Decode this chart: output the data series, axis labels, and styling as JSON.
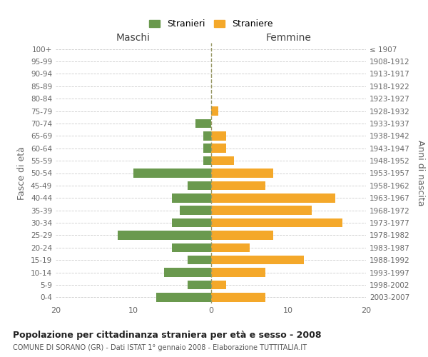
{
  "age_groups": [
    "0-4",
    "5-9",
    "10-14",
    "15-19",
    "20-24",
    "25-29",
    "30-34",
    "35-39",
    "40-44",
    "45-49",
    "50-54",
    "55-59",
    "60-64",
    "65-69",
    "70-74",
    "75-79",
    "80-84",
    "85-89",
    "90-94",
    "95-99",
    "100+"
  ],
  "birth_years": [
    "2003-2007",
    "1998-2002",
    "1993-1997",
    "1988-1992",
    "1983-1987",
    "1978-1982",
    "1973-1977",
    "1968-1972",
    "1963-1967",
    "1958-1962",
    "1953-1957",
    "1948-1952",
    "1943-1947",
    "1938-1942",
    "1933-1937",
    "1928-1932",
    "1923-1927",
    "1918-1922",
    "1913-1917",
    "1908-1912",
    "≤ 1907"
  ],
  "males": [
    7,
    3,
    6,
    3,
    5,
    12,
    5,
    4,
    5,
    3,
    10,
    1,
    1,
    1,
    2,
    0,
    0,
    0,
    0,
    0,
    0
  ],
  "females": [
    7,
    2,
    7,
    12,
    5,
    8,
    17,
    13,
    16,
    7,
    8,
    3,
    2,
    2,
    0,
    1,
    0,
    0,
    0,
    0,
    0
  ],
  "male_color": "#6a994e",
  "female_color": "#f4a82a",
  "background_color": "#ffffff",
  "grid_color": "#cccccc",
  "title": "Popolazione per cittadinanza straniera per età e sesso - 2008",
  "subtitle": "COMUNE DI SORANO (GR) - Dati ISTAT 1° gennaio 2008 - Elaborazione TUTTITALIA.IT",
  "xlabel_left": "Maschi",
  "xlabel_right": "Femmine",
  "ylabel_left": "Fasce di età",
  "ylabel_right": "Anni di nascita",
  "legend_male": "Stranieri",
  "legend_female": "Straniere",
  "xlim": 20
}
